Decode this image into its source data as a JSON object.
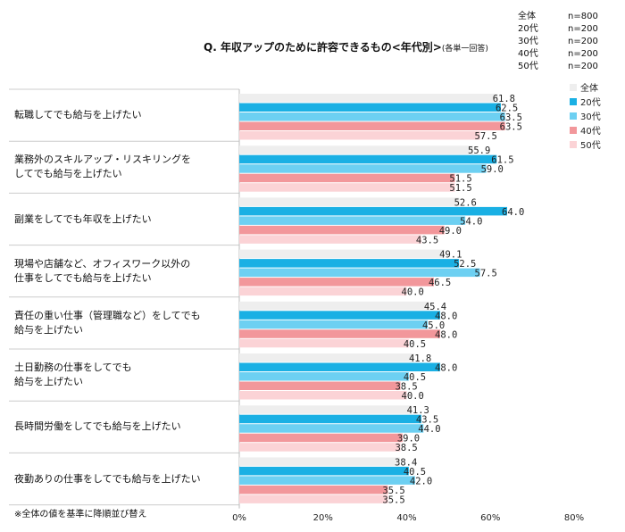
{
  "title": "Q. 年収アップのために許容できるもの<年代別>",
  "subtitle": "(各単一回答)",
  "footnote": "※全体の値を基準に降順並び替え",
  "sample_sizes": [
    {
      "group": "全体",
      "n": "n=800"
    },
    {
      "group": "20代",
      "n": "n=200"
    },
    {
      "group": "30代",
      "n": "n=200"
    },
    {
      "group": "40代",
      "n": "n=200"
    },
    {
      "group": "50代",
      "n": "n=200"
    }
  ],
  "categories_display": [
    [
      "転職してでも給与を上げたい"
    ],
    [
      "業務外のスキルアップ・リスキリングを",
      "してでも給与を上げたい"
    ],
    [
      "副業をしてでも年収を上げたい"
    ],
    [
      "現場や店舗など、オフィスワーク以外の",
      "仕事をしてでも給与を上げたい"
    ],
    [
      "責任の重い仕事（管理職など）をしてでも",
      "給与を上げたい"
    ],
    [
      "土日勤務の仕事をしてでも",
      "給与を上げたい"
    ],
    [
      "長時間労働をしてでも給与を上げたい"
    ],
    [
      "夜勤ありの仕事をしてでも給与を上げたい"
    ]
  ],
  "colors": {
    "全体": "#eeeeee",
    "20代": "#1ab0e4",
    "30代": "#6dd0f2",
    "40代": "#f2979b",
    "50代": "#fbd3d6",
    "separator": "#cccccc",
    "axis": "#bbbbbb"
  },
  "chart_data": {
    "type": "bar",
    "orientation": "horizontal",
    "categories": [
      "転職してでも給与を上げたい",
      "業務外のスキルアップ・リスキリングをしてでも給与を上げたい",
      "副業をしてでも年収を上げたい",
      "現場や店舗など、オフィスワーク以外の仕事をしてでも給与を上げたい",
      "責任の重い仕事（管理職など）をしてでも給与を上げたい",
      "土日勤務の仕事をしてでも給与を上げたい",
      "長時間労働をしてでも給与を上げたい",
      "夜勤ありの仕事をしてでも給与を上げたい"
    ],
    "series": [
      {
        "name": "全体",
        "values": [
          61.8,
          55.9,
          52.6,
          49.1,
          45.4,
          41.8,
          41.3,
          38.4
        ]
      },
      {
        "name": "20代",
        "values": [
          62.5,
          61.5,
          64.0,
          52.5,
          48.0,
          48.0,
          43.5,
          40.5
        ]
      },
      {
        "name": "30代",
        "values": [
          63.5,
          59.0,
          54.0,
          57.5,
          45.0,
          40.5,
          44.0,
          42.0
        ]
      },
      {
        "name": "40代",
        "values": [
          63.5,
          51.5,
          49.0,
          46.5,
          48.0,
          38.5,
          39.0,
          35.5
        ]
      },
      {
        "name": "50代",
        "values": [
          57.5,
          51.5,
          43.5,
          40.0,
          40.5,
          40.0,
          38.5,
          35.5
        ]
      }
    ],
    "xlim": [
      0,
      80
    ],
    "xticks": [
      "0%",
      "20%",
      "40%",
      "60%",
      "80%"
    ],
    "legend_position": "right",
    "grid": false
  }
}
